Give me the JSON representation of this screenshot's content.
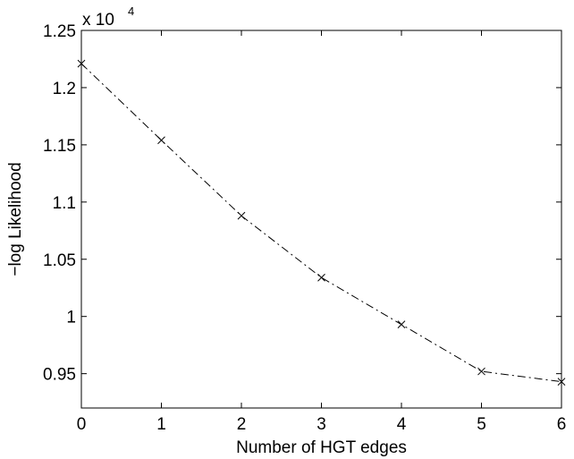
{
  "chart_data": {
    "type": "line",
    "title": "",
    "xlabel": "Number of HGT edges",
    "ylabel": "−log Likelihood",
    "y_multiplier_base": "x 10",
    "y_multiplier_exponent": "4",
    "xlim": [
      0,
      6
    ],
    "ylim": [
      0.92,
      1.25
    ],
    "x_ticks": [
      0,
      1,
      2,
      3,
      4,
      5,
      6
    ],
    "x_tick_labels": [
      "0",
      "1",
      "2",
      "3",
      "4",
      "5",
      "6"
    ],
    "y_ticks": [
      0.95,
      1.0,
      1.05,
      1.1,
      1.15,
      1.2,
      1.25
    ],
    "y_tick_labels": [
      "0.95",
      "1",
      "1.05",
      "1.1",
      "1.15",
      "1.2",
      "1.25"
    ],
    "grid": false,
    "legend": "none",
    "line_style": "dash-dot",
    "marker": "x",
    "line_color": "#000000",
    "series": [
      {
        "x": [
          0,
          1,
          2,
          3,
          4,
          5,
          6
        ],
        "values": [
          1.221,
          1.154,
          1.088,
          1.034,
          0.993,
          0.952,
          0.943
        ]
      }
    ]
  }
}
